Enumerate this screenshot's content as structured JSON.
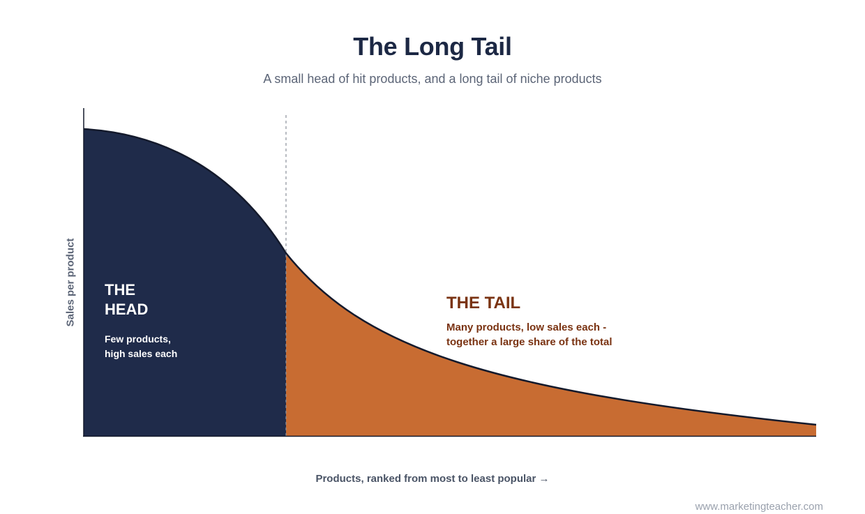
{
  "title": "The Long Tail",
  "subtitle": "A small head of hit products, and a long tail of niche products",
  "y_axis_label": "Sales per product",
  "x_axis_label": "Products, ranked from most to least popular →",
  "head": {
    "title_line1": "THE",
    "title_line2": "HEAD",
    "desc_line1": "Few products,",
    "desc_line2": "high sales each",
    "color": "#1f2b4a"
  },
  "tail": {
    "title": "THE TAIL",
    "desc_line1": "Many products, low sales each -",
    "desc_line2": "together a large share of the total",
    "color": "#c86c32",
    "text_color": "#7a3312"
  },
  "footer": "www.marketingteacher.com"
}
